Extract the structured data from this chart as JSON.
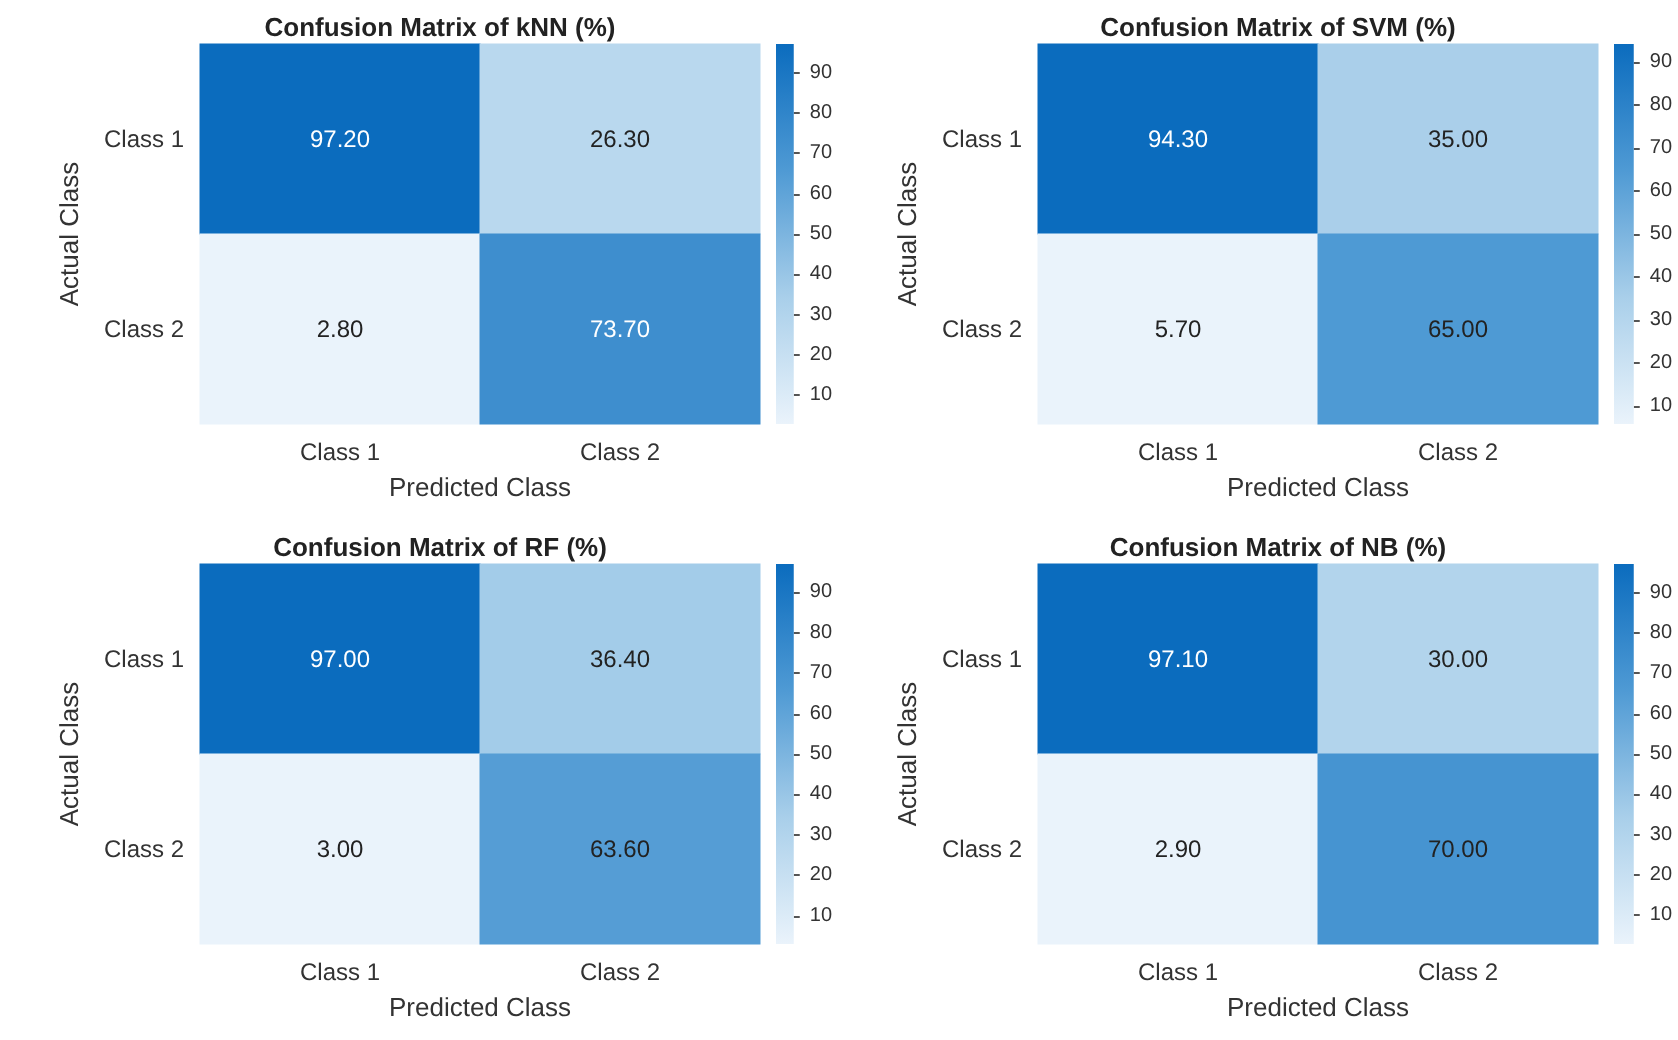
{
  "chart_data": [
    {
      "type": "heatmap",
      "title": "Confusion Matrix of kNN (%)",
      "xlabel": "Predicted Class",
      "ylabel": "Actual Class",
      "categories": [
        "Class 1",
        "Class 2"
      ],
      "y_categories": [
        "Class 1",
        "Class 2"
      ],
      "cells": [
        [
          97.2,
          26.3
        ],
        [
          2.8,
          73.7
        ]
      ],
      "cell_labels": [
        [
          "97.20",
          "26.30"
        ],
        [
          "2.80",
          "73.70"
        ]
      ],
      "clim": [
        2.8,
        97.2
      ],
      "cticks": [
        10,
        20,
        30,
        40,
        50,
        60,
        70,
        80,
        90
      ]
    },
    {
      "type": "heatmap",
      "title": "Confusion Matrix of SVM (%)",
      "xlabel": "Predicted Class",
      "ylabel": "Actual Class",
      "categories": [
        "Class 1",
        "Class 2"
      ],
      "y_categories": [
        "Class 1",
        "Class 2"
      ],
      "cells": [
        [
          94.3,
          35.0
        ],
        [
          5.7,
          65.0
        ]
      ],
      "cell_labels": [
        [
          "94.30",
          "35.00"
        ],
        [
          "5.70",
          "65.00"
        ]
      ],
      "clim": [
        5.7,
        94.3
      ],
      "cticks": [
        10,
        20,
        30,
        40,
        50,
        60,
        70,
        80,
        90
      ]
    },
    {
      "type": "heatmap",
      "title": "Confusion Matrix of RF (%)",
      "xlabel": "Predicted Class",
      "ylabel": "Actual Class",
      "categories": [
        "Class 1",
        "Class 2"
      ],
      "y_categories": [
        "Class 1",
        "Class 2"
      ],
      "cells": [
        [
          97.0,
          36.4
        ],
        [
          3.0,
          63.6
        ]
      ],
      "cell_labels": [
        [
          "97.00",
          "36.40"
        ],
        [
          "3.00",
          "63.60"
        ]
      ],
      "clim": [
        3.0,
        97.0
      ],
      "cticks": [
        10,
        20,
        30,
        40,
        50,
        60,
        70,
        80,
        90
      ]
    },
    {
      "type": "heatmap",
      "title": "Confusion Matrix of NB (%)",
      "xlabel": "Predicted Class",
      "ylabel": "Actual Class",
      "categories": [
        "Class 1",
        "Class 2"
      ],
      "y_categories": [
        "Class 1",
        "Class 2"
      ],
      "cells": [
        [
          97.1,
          30.0
        ],
        [
          2.9,
          70.0
        ]
      ],
      "cell_labels": [
        [
          "97.10",
          "30.00"
        ],
        [
          "2.90",
          "70.00"
        ]
      ],
      "clim": [
        2.9,
        97.1
      ],
      "cticks": [
        10,
        20,
        30,
        40,
        50,
        60,
        70,
        80,
        90
      ]
    }
  ]
}
